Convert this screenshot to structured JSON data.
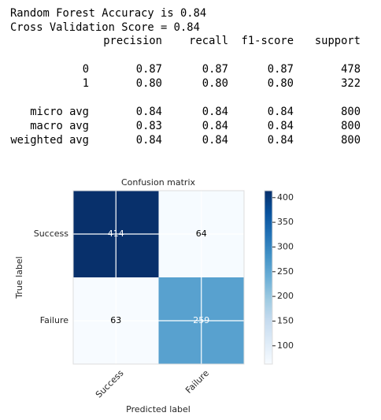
{
  "report": {
    "lines": [
      "Random Forest Accuracy is 0.84",
      "Cross Validation Score = 0.84"
    ],
    "header": [
      "precision",
      "recall",
      "f1-score",
      "support"
    ],
    "rows": [
      [
        "0",
        "0.87",
        "0.87",
        "0.87",
        "478"
      ],
      [
        "1",
        "0.80",
        "0.80",
        "0.80",
        "322"
      ]
    ],
    "avg_rows": [
      [
        "micro avg",
        "0.84",
        "0.84",
        "0.84",
        "800"
      ],
      [
        "macro avg",
        "0.83",
        "0.84",
        "0.84",
        "800"
      ],
      [
        "weighted avg",
        "0.84",
        "0.84",
        "0.84",
        "800"
      ]
    ]
  },
  "chart_data": {
    "type": "heatmap",
    "title": "Confusion matrix",
    "xlabel": "Predicted label",
    "ylabel": "True label",
    "categories": [
      "Success",
      "Failure"
    ],
    "values": [
      [
        414,
        64
      ],
      [
        63,
        259
      ]
    ],
    "clim": [
      63,
      414
    ],
    "cticks": [
      100,
      150,
      200,
      250,
      300,
      350,
      400
    ],
    "colormap": [
      "#f7fbff",
      "#deebf7",
      "#c6dbef",
      "#9ecae1",
      "#6baed6",
      "#4292c6",
      "#2171b5",
      "#08519c",
      "#08306b"
    ],
    "grid": true
  }
}
